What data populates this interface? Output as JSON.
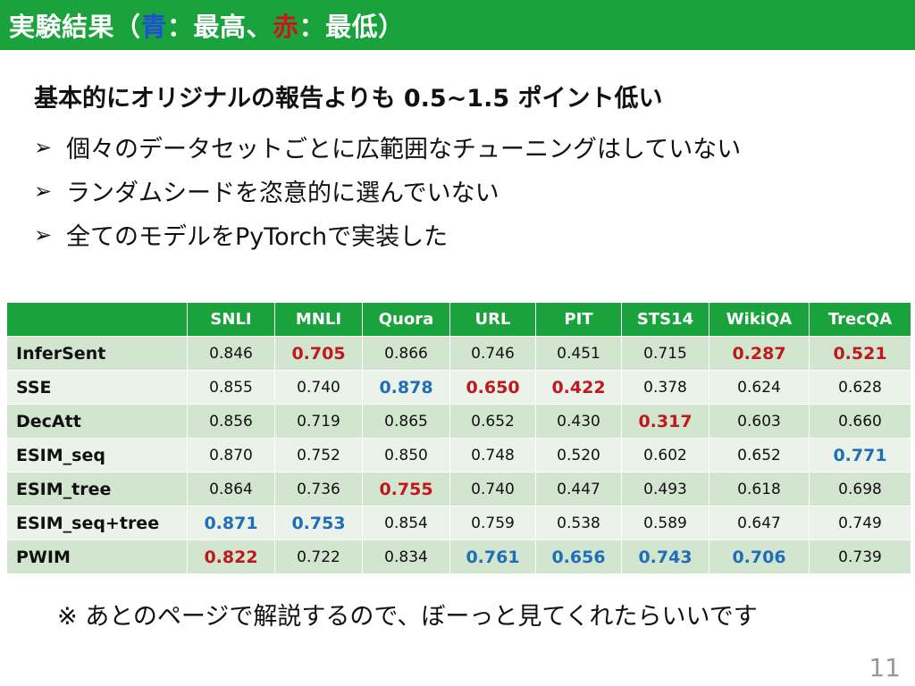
{
  "slide": {
    "title_prefix": "実験結果（",
    "title_blue": "青",
    "title_mid": "：最高、",
    "title_red": "赤",
    "title_suffix": "：最低）",
    "headline": "基本的にオリジナルの報告よりも 0.5~1.5 ポイント低い",
    "bullet_marker": "➢",
    "bullets": [
      "個々のデータセットごとに広範囲なチューニングはしていない",
      "ランダムシードを恣意的に選んでいない",
      "全てのモデルをPyTorchで実装した"
    ],
    "note": "※ あとのページで解説するので、ぼーっと見てくれたらいいです",
    "page_number": "11"
  },
  "colors": {
    "header_green": "#1aa33c",
    "best_blue": "#1f6fb8",
    "worst_red": "#c0181c"
  },
  "table": {
    "columns": [
      "",
      "SNLI",
      "MNLI",
      "Quora",
      "URL",
      "PIT",
      "STS14",
      "WikiQA",
      "TrecQA"
    ],
    "rows": [
      {
        "model": "InferSent",
        "values": [
          "0.846",
          "0.705",
          "0.866",
          "0.746",
          "0.451",
          "0.715",
          "0.287",
          "0.521"
        ],
        "marks": [
          "",
          "worst",
          "",
          "",
          "",
          "",
          "worst",
          "worst"
        ]
      },
      {
        "model": "SSE",
        "values": [
          "0.855",
          "0.740",
          "0.878",
          "0.650",
          "0.422",
          "0.378",
          "0.624",
          "0.628"
        ],
        "marks": [
          "",
          "",
          "best",
          "worst",
          "worst",
          "",
          "",
          ""
        ]
      },
      {
        "model": "DecAtt",
        "values": [
          "0.856",
          "0.719",
          "0.865",
          "0.652",
          "0.430",
          "0.317",
          "0.603",
          "0.660"
        ],
        "marks": [
          "",
          "",
          "",
          "",
          "",
          "worst",
          "",
          ""
        ]
      },
      {
        "model": "ESIM_seq",
        "values": [
          "0.870",
          "0.752",
          "0.850",
          "0.748",
          "0.520",
          "0.602",
          "0.652",
          "0.771"
        ],
        "marks": [
          "",
          "",
          "",
          "",
          "",
          "",
          "",
          "best"
        ]
      },
      {
        "model": "ESIM_tree",
        "values": [
          "0.864",
          "0.736",
          "0.755",
          "0.740",
          "0.447",
          "0.493",
          "0.618",
          "0.698"
        ],
        "marks": [
          "",
          "",
          "worst",
          "",
          "",
          "",
          "",
          ""
        ]
      },
      {
        "model": "ESIM_seq+tree",
        "values": [
          "0.871",
          "0.753",
          "0.854",
          "0.759",
          "0.538",
          "0.589",
          "0.647",
          "0.749"
        ],
        "marks": [
          "best",
          "best",
          "",
          "",
          "",
          "",
          "",
          ""
        ]
      },
      {
        "model": "PWIM",
        "values": [
          "0.822",
          "0.722",
          "0.834",
          "0.761",
          "0.656",
          "0.743",
          "0.706",
          "0.739"
        ],
        "marks": [
          "worst",
          "",
          "",
          "best",
          "best",
          "best",
          "best",
          ""
        ]
      }
    ]
  }
}
